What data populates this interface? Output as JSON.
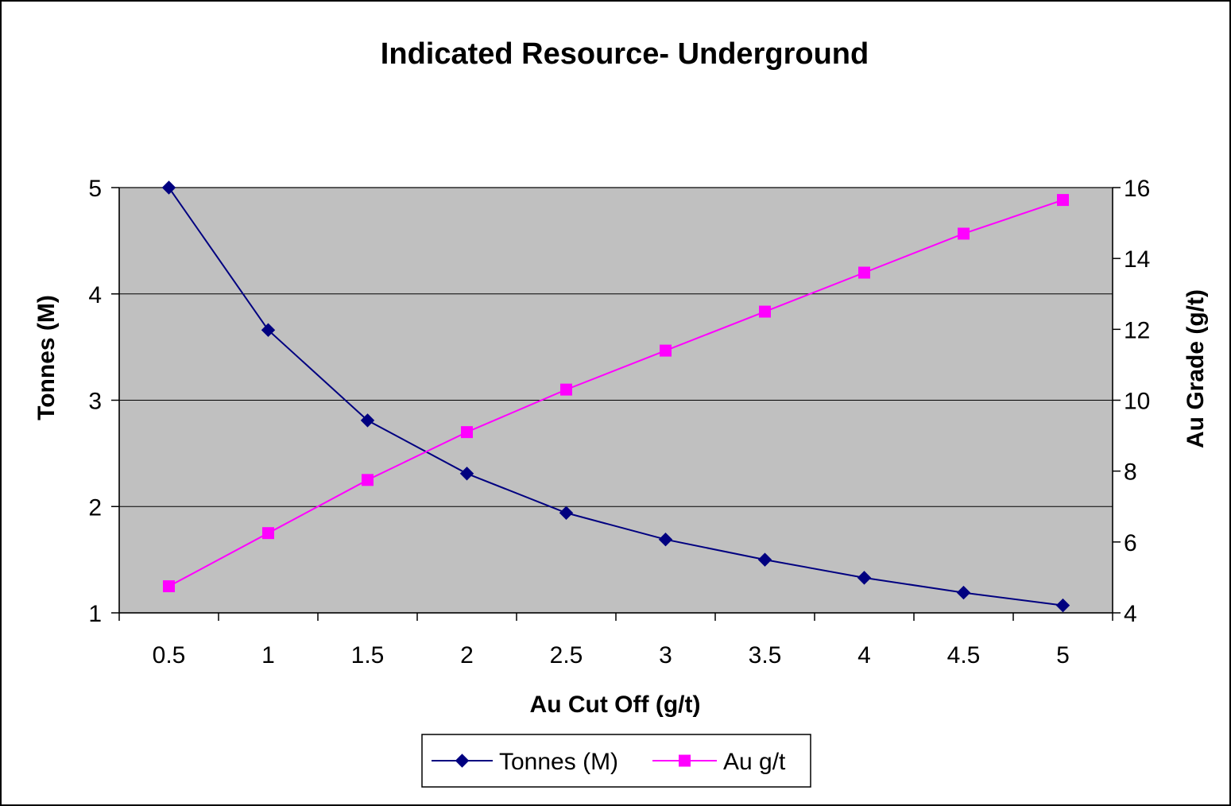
{
  "chart_data": {
    "type": "line",
    "title": "Indicated Resource- Underground",
    "xlabel": "Au Cut Off (g/t)",
    "ylabel": "Tonnes (M)",
    "y2label": "Au Grade (g/t)",
    "categories": [
      "0.5",
      "1",
      "1.5",
      "2",
      "2.5",
      "3",
      "3.5",
      "4",
      "4.5",
      "5"
    ],
    "ylim": [
      1,
      5
    ],
    "y2lim": [
      4,
      16
    ],
    "yticks": [
      "1",
      "2",
      "3",
      "4",
      "5"
    ],
    "y2ticks": [
      "4",
      "6",
      "8",
      "10",
      "12",
      "14",
      "16"
    ],
    "grid": true,
    "legend_position": "bottom",
    "series": [
      {
        "name": "Tonnes (M)",
        "axis": "left",
        "marker": "diamond",
        "color": "#000080",
        "values": [
          5.0,
          3.66,
          2.81,
          2.31,
          1.94,
          1.69,
          1.5,
          1.33,
          1.19,
          1.07
        ]
      },
      {
        "name": "Au g/t",
        "axis": "right",
        "marker": "square",
        "color": "#FF00FF",
        "values": [
          4.75,
          6.25,
          7.75,
          9.1,
          10.3,
          11.4,
          12.5,
          13.6,
          14.7,
          15.65
        ]
      }
    ],
    "plot_background": "#C0C0C0"
  }
}
